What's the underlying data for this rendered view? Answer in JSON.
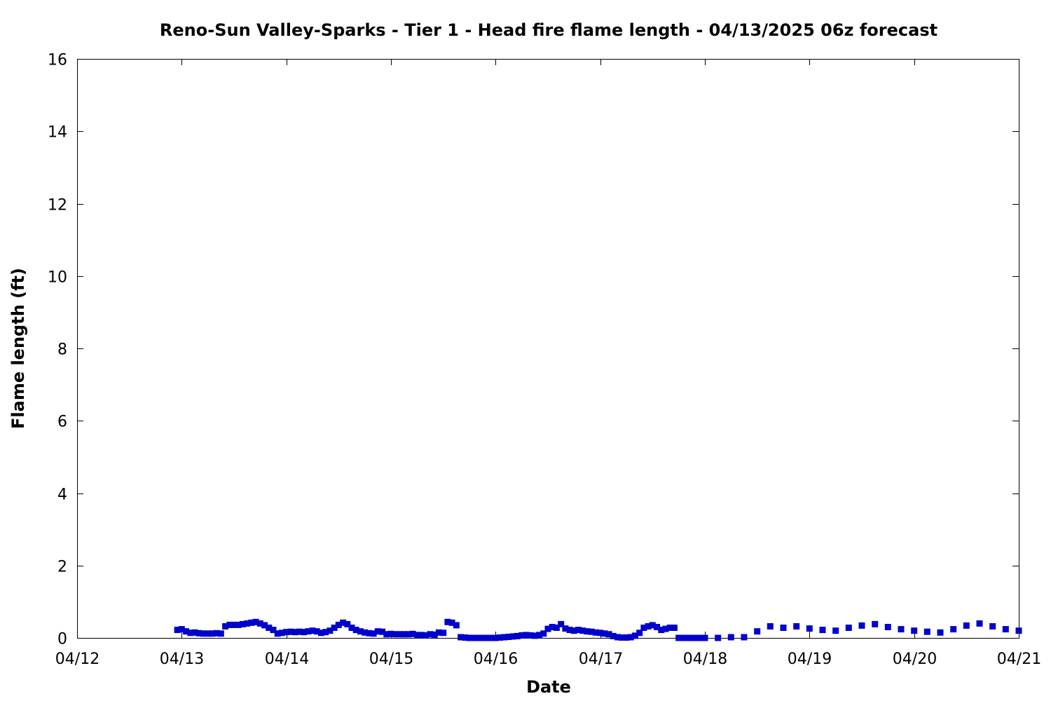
{
  "chart_data": {
    "type": "scatter",
    "title": "Reno-Sun Valley-Sparks - Tier 1 - Head fire flame length - 04/13/2025 06z forecast",
    "xlabel": "Date",
    "ylabel": "Flame length (ft)",
    "x_ticks": [
      "04/12",
      "04/13",
      "04/14",
      "04/15",
      "04/16",
      "04/17",
      "04/18",
      "04/19",
      "04/20",
      "04/21"
    ],
    "xlim": [
      "04/12 00:00",
      "04/21 00:00"
    ],
    "ylim": [
      0,
      16
    ],
    "y_ticks": [
      "0",
      "2",
      "4",
      "6",
      "8",
      "10",
      "12",
      "14",
      "16"
    ],
    "grid": false,
    "legend": "none",
    "marker": "square",
    "color": "#0000cc",
    "series": [
      {
        "x": [
          "04/12 23:00",
          "04/13 00:00",
          "04/13 01:00",
          "04/13 02:00",
          "04/13 03:00",
          "04/13 04:00",
          "04/13 05:00",
          "04/13 06:00",
          "04/13 07:00",
          "04/13 08:00",
          "04/13 09:00",
          "04/13 10:00",
          "04/13 11:00",
          "04/13 12:00",
          "04/13 13:00",
          "04/13 14:00",
          "04/13 15:00",
          "04/13 16:00",
          "04/13 17:00",
          "04/13 18:00",
          "04/13 19:00",
          "04/13 20:00",
          "04/13 21:00",
          "04/13 22:00",
          "04/13 23:00",
          "04/14 00:00",
          "04/14 01:00",
          "04/14 02:00",
          "04/14 03:00",
          "04/14 04:00",
          "04/14 05:00",
          "04/14 06:00",
          "04/14 07:00",
          "04/14 08:00",
          "04/14 09:00",
          "04/14 10:00",
          "04/14 11:00",
          "04/14 12:00",
          "04/14 13:00",
          "04/14 14:00",
          "04/14 15:00",
          "04/14 16:00",
          "04/14 17:00",
          "04/14 18:00",
          "04/14 19:00",
          "04/14 20:00",
          "04/14 21:00",
          "04/14 22:00",
          "04/14 23:00",
          "04/15 00:00",
          "04/15 01:00",
          "04/15 02:00",
          "04/15 03:00",
          "04/15 04:00",
          "04/15 05:00",
          "04/15 06:00",
          "04/15 07:00",
          "04/15 08:00",
          "04/15 09:00",
          "04/15 10:00",
          "04/15 11:00",
          "04/15 12:00",
          "04/15 13:00",
          "04/15 14:00",
          "04/15 15:00",
          "04/15 16:00",
          "04/15 17:00",
          "04/15 18:00",
          "04/15 19:00",
          "04/15 20:00",
          "04/15 21:00",
          "04/15 22:00",
          "04/15 23:00",
          "04/16 00:00",
          "04/16 01:00",
          "04/16 02:00",
          "04/16 03:00",
          "04/16 04:00",
          "04/16 05:00",
          "04/16 06:00",
          "04/16 07:00",
          "04/16 08:00",
          "04/16 09:00",
          "04/16 10:00",
          "04/16 11:00",
          "04/16 12:00",
          "04/16 13:00",
          "04/16 14:00",
          "04/16 15:00",
          "04/16 16:00",
          "04/16 17:00",
          "04/16 18:00",
          "04/16 19:00",
          "04/16 20:00",
          "04/16 21:00",
          "04/16 22:00",
          "04/16 23:00",
          "04/17 00:00",
          "04/17 01:00",
          "04/17 02:00",
          "04/17 03:00",
          "04/17 04:00",
          "04/17 05:00",
          "04/17 06:00",
          "04/17 07:00",
          "04/17 08:00",
          "04/17 09:00",
          "04/17 10:00",
          "04/17 11:00",
          "04/17 12:00",
          "04/17 13:00",
          "04/17 14:00",
          "04/17 15:00",
          "04/17 16:00",
          "04/17 17:00",
          "04/17 18:00",
          "04/17 19:00",
          "04/17 20:00",
          "04/17 21:00",
          "04/17 22:00",
          "04/17 23:00",
          "04/18 00:00",
          "04/18 03:00",
          "04/18 06:00",
          "04/18 09:00",
          "04/18 12:00",
          "04/18 15:00",
          "04/18 18:00",
          "04/18 21:00",
          "04/19 00:00",
          "04/19 03:00",
          "04/19 06:00",
          "04/19 09:00",
          "04/19 12:00",
          "04/19 15:00",
          "04/19 18:00",
          "04/19 21:00",
          "04/20 00:00",
          "04/20 03:00",
          "04/20 06:00",
          "04/20 09:00",
          "04/20 12:00",
          "04/20 15:00",
          "04/20 18:00",
          "04/20 21:00",
          "04/21 00:00"
        ],
        "y": [
          0.22,
          0.24,
          0.18,
          0.14,
          0.15,
          0.13,
          0.12,
          0.12,
          0.12,
          0.13,
          0.12,
          0.32,
          0.36,
          0.36,
          0.36,
          0.38,
          0.4,
          0.42,
          0.44,
          0.4,
          0.35,
          0.28,
          0.22,
          0.12,
          0.14,
          0.16,
          0.17,
          0.16,
          0.17,
          0.16,
          0.18,
          0.2,
          0.18,
          0.14,
          0.16,
          0.2,
          0.28,
          0.36,
          0.42,
          0.38,
          0.28,
          0.22,
          0.18,
          0.15,
          0.13,
          0.12,
          0.18,
          0.17,
          0.1,
          0.11,
          0.1,
          0.1,
          0.1,
          0.1,
          0.11,
          0.08,
          0.08,
          0.07,
          0.1,
          0.09,
          0.15,
          0.14,
          0.44,
          0.42,
          0.35,
          0.02,
          0.01,
          0.0,
          0.0,
          0.0,
          0.0,
          0.0,
          0.0,
          0.0,
          0.01,
          0.02,
          0.03,
          0.04,
          0.05,
          0.07,
          0.08,
          0.07,
          0.06,
          0.08,
          0.12,
          0.25,
          0.3,
          0.28,
          0.38,
          0.26,
          0.22,
          0.2,
          0.22,
          0.2,
          0.18,
          0.17,
          0.15,
          0.14,
          0.12,
          0.1,
          0.05,
          0.02,
          0.01,
          0.01,
          0.02,
          0.06,
          0.14,
          0.28,
          0.32,
          0.35,
          0.3,
          0.22,
          0.25,
          0.28,
          0.28,
          0.0,
          0.0,
          0.0,
          0.0,
          0.0,
          0.0,
          0.0,
          0.0,
          0.02,
          0.02,
          0.18,
          0.32,
          0.28,
          0.32,
          0.26,
          0.22,
          0.2,
          0.28,
          0.34,
          0.38,
          0.3,
          0.24,
          0.2,
          0.17,
          0.15,
          0.24,
          0.34,
          0.4,
          0.32,
          0.24,
          0.2
        ]
      }
    ]
  }
}
